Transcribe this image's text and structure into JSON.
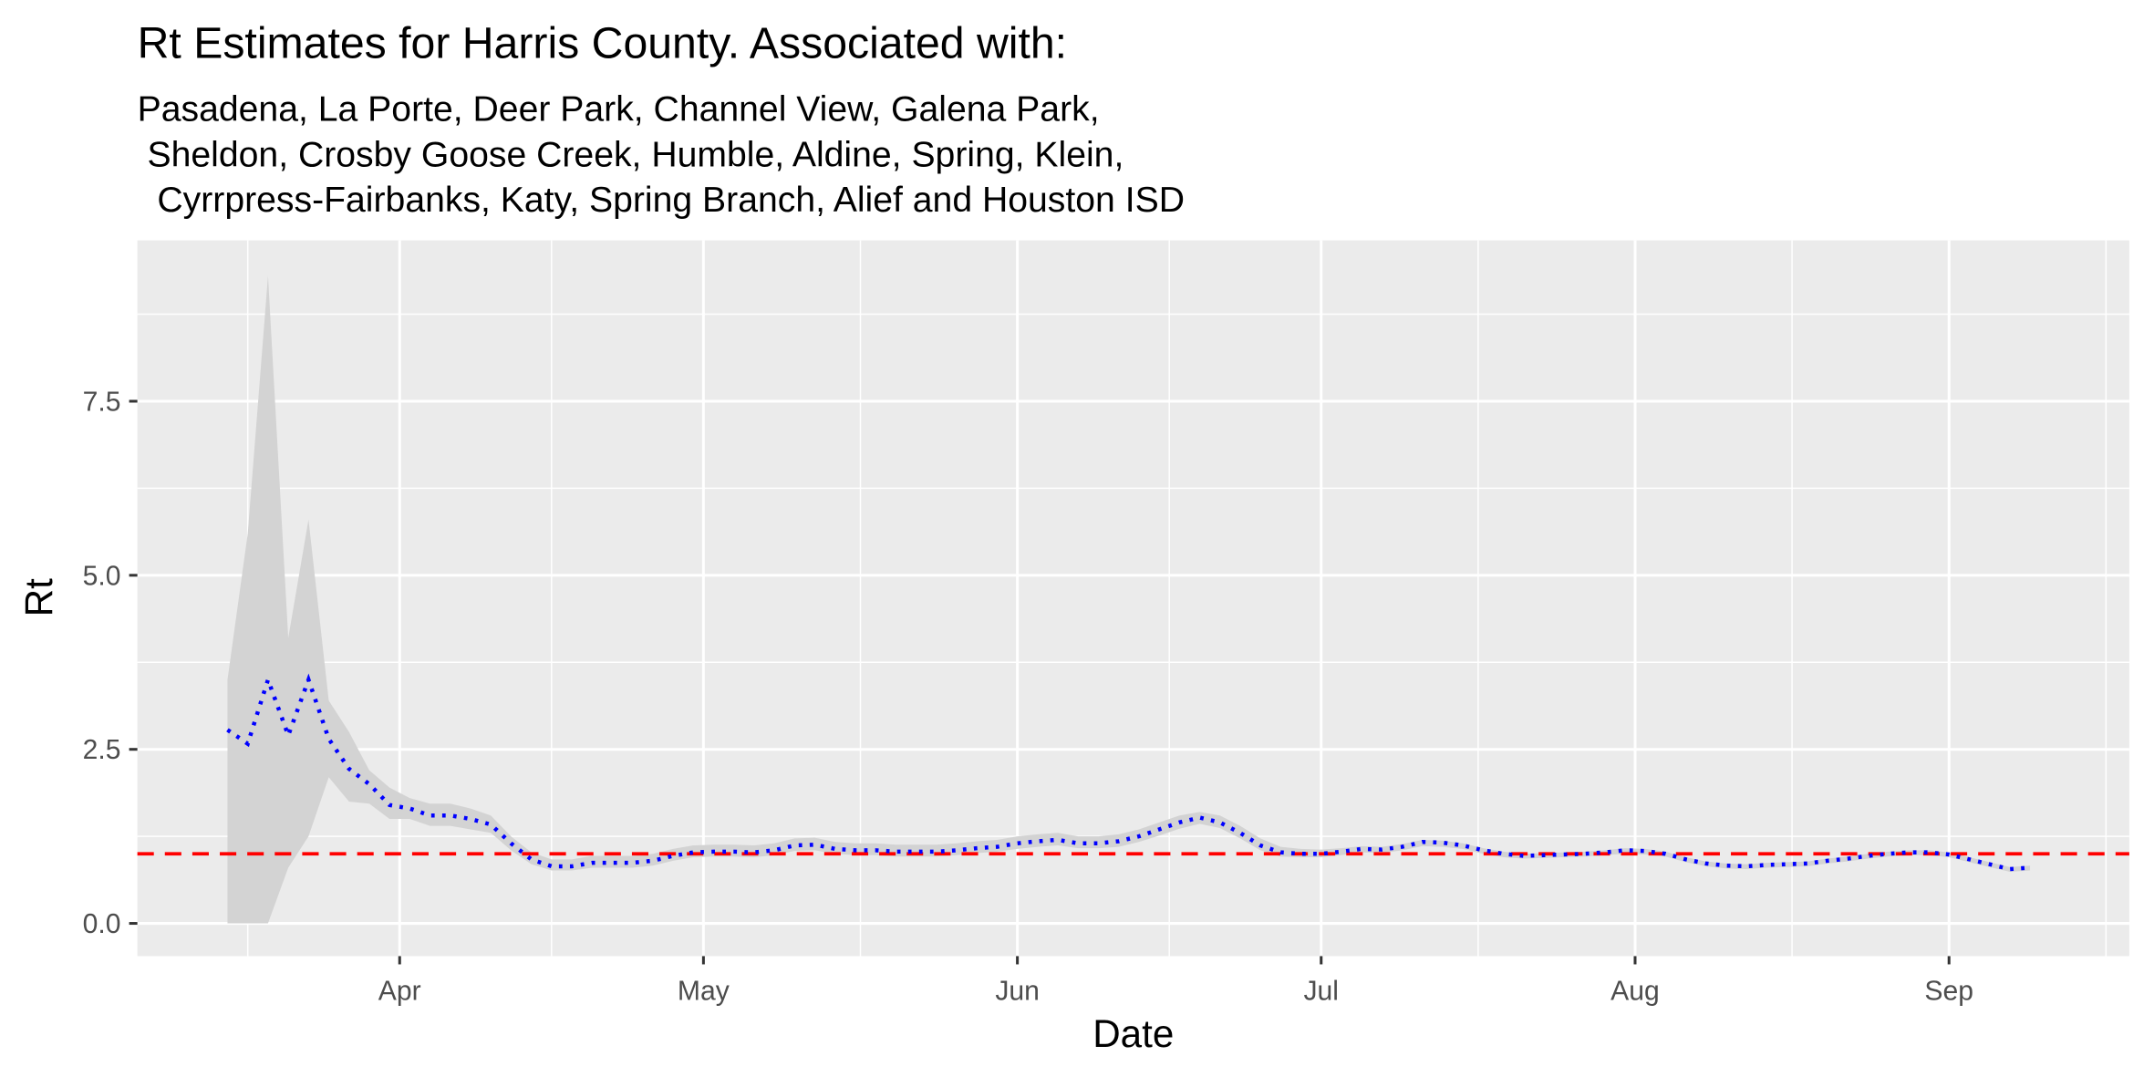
{
  "chart_data": {
    "type": "line",
    "title": "Rt Estimates for Harris County. Associated with:",
    "subtitle_lines": [
      "Pasadena, La Porte, Deer Park, Channel View, Galena Park,",
      " Sheldon, Crosby Goose Creek, Humble, Aldine, Spring, Klein,",
      "  Cyrrpress-Fairbanks, Katy, Spring Branch, Alief and Houston ISD"
    ],
    "x_label": "Date",
    "y_label": "Rt",
    "x": [
      75,
      77,
      79,
      81,
      83,
      85,
      87,
      89,
      91,
      93,
      95,
      97,
      99,
      101,
      103,
      105,
      107,
      109,
      111,
      113,
      115,
      117,
      119,
      121,
      123,
      125,
      127,
      129,
      131,
      133,
      135,
      137,
      139,
      141,
      143,
      145,
      147,
      149,
      151,
      153,
      155,
      157,
      159,
      161,
      163,
      165,
      167,
      169,
      171,
      173,
      175,
      177,
      179,
      181,
      183,
      185,
      187,
      189,
      191,
      193,
      195,
      197,
      199,
      201,
      203,
      205,
      207,
      209,
      211,
      213,
      215,
      217,
      219,
      221,
      223,
      225,
      227,
      229,
      231,
      233,
      235,
      237,
      239,
      241,
      243,
      245,
      247,
      249,
      251,
      253
    ],
    "values": [
      2.78,
      2.58,
      3.5,
      2.7,
      3.5,
      2.65,
      2.22,
      2.0,
      1.7,
      1.65,
      1.55,
      1.55,
      1.5,
      1.42,
      1.15,
      0.92,
      0.82,
      0.82,
      0.87,
      0.87,
      0.87,
      0.9,
      0.97,
      1.02,
      1.03,
      1.03,
      1.02,
      1.05,
      1.12,
      1.13,
      1.07,
      1.05,
      1.05,
      1.03,
      1.03,
      1.03,
      1.05,
      1.08,
      1.1,
      1.15,
      1.18,
      1.2,
      1.15,
      1.15,
      1.18,
      1.25,
      1.35,
      1.45,
      1.52,
      1.45,
      1.3,
      1.12,
      1.02,
      1.0,
      1.0,
      1.03,
      1.07,
      1.06,
      1.1,
      1.17,
      1.16,
      1.12,
      1.05,
      1.0,
      0.97,
      0.98,
      0.99,
      1.0,
      1.02,
      1.05,
      1.04,
      1.0,
      0.92,
      0.86,
      0.83,
      0.82,
      0.84,
      0.85,
      0.86,
      0.9,
      0.93,
      0.97,
      1.0,
      1.02,
      1.02,
      0.99,
      0.92,
      0.85,
      0.78,
      0.8
    ],
    "upper": [
      3.5,
      5.6,
      9.3,
      4.1,
      5.8,
      3.2,
      2.75,
      2.2,
      1.95,
      1.8,
      1.72,
      1.72,
      1.65,
      1.55,
      1.25,
      1.02,
      0.92,
      0.92,
      0.97,
      0.97,
      0.97,
      1.0,
      1.07,
      1.12,
      1.13,
      1.13,
      1.12,
      1.15,
      1.22,
      1.23,
      1.17,
      1.15,
      1.15,
      1.13,
      1.13,
      1.13,
      1.15,
      1.18,
      1.2,
      1.25,
      1.28,
      1.3,
      1.25,
      1.25,
      1.28,
      1.35,
      1.45,
      1.55,
      1.6,
      1.55,
      1.4,
      1.22,
      1.1,
      1.07,
      1.06,
      1.08,
      1.11,
      1.1,
      1.14,
      1.2,
      1.19,
      1.15,
      1.08,
      1.03,
      1.0,
      1.01,
      1.02,
      1.03,
      1.05,
      1.08,
      1.07,
      1.03,
      0.95,
      0.89,
      0.86,
      0.85,
      0.87,
      0.88,
      0.89,
      0.93,
      0.96,
      1.0,
      1.03,
      1.05,
      1.05,
      1.02,
      0.95,
      0.88,
      0.81,
      0.83
    ],
    "lower": [
      0,
      0,
      0,
      0.8,
      1.25,
      2.1,
      1.75,
      1.72,
      1.5,
      1.5,
      1.4,
      1.4,
      1.35,
      1.3,
      1.05,
      0.85,
      0.76,
      0.76,
      0.8,
      0.8,
      0.8,
      0.83,
      0.9,
      0.95,
      0.96,
      0.96,
      0.95,
      0.98,
      1.04,
      1.05,
      1.0,
      0.98,
      0.98,
      0.96,
      0.96,
      0.96,
      0.98,
      1.01,
      1.03,
      1.07,
      1.1,
      1.12,
      1.08,
      1.08,
      1.1,
      1.17,
      1.26,
      1.36,
      1.43,
      1.37,
      1.22,
      1.05,
      0.96,
      0.95,
      0.95,
      0.98,
      1.02,
      1.01,
      1.05,
      1.11,
      1.1,
      1.07,
      1.0,
      0.95,
      0.93,
      0.94,
      0.95,
      0.96,
      0.98,
      1.0,
      0.99,
      0.96,
      0.88,
      0.82,
      0.79,
      0.78,
      0.8,
      0.81,
      0.82,
      0.86,
      0.89,
      0.93,
      0.96,
      0.98,
      0.98,
      0.95,
      0.88,
      0.81,
      0.74,
      0.76
    ],
    "color": "#0000ff",
    "ribbon_color": "#d3d3d3",
    "hline": 1,
    "hline_color": "#ff0000",
    "xlim": [
      66.1,
      262.8
    ],
    "xticks": [
      {
        "value": 92,
        "label": "Apr"
      },
      {
        "value": 122,
        "label": "May"
      },
      {
        "value": 153,
        "label": "Jun"
      },
      {
        "value": 183,
        "label": "Jul"
      },
      {
        "value": 214,
        "label": "Aug"
      },
      {
        "value": 245,
        "label": "Sep"
      }
    ],
    "ylim": [
      -0.47,
      9.81
    ],
    "yticks": [
      {
        "value": 0,
        "label": "0.0"
      },
      2.5,
      {
        "value": 5,
        "label": "5.0"
      },
      7.5
    ],
    "grid": true
  }
}
